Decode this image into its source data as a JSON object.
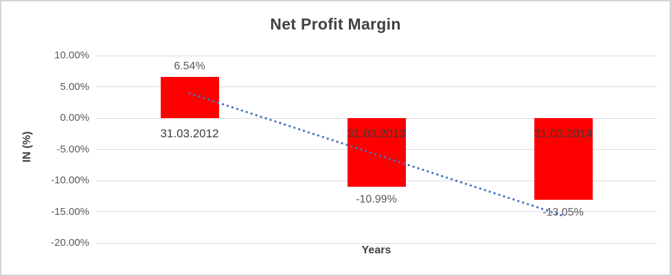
{
  "chart": {
    "title": "Net Profit Margin",
    "x_axis_title": "Years",
    "y_axis_title": "IN (%)"
  },
  "chart_data": {
    "type": "bar",
    "title": "Net Profit Margin",
    "xlabel": "Years",
    "ylabel": "IN (%)",
    "categories": [
      "31.03.2012",
      "31.03.2013",
      "31.03.2014"
    ],
    "values": [
      6.54,
      -10.99,
      -13.05
    ],
    "data_labels": [
      "6.54%",
      "-10.99%",
      "-13.05%"
    ],
    "ylim": [
      -20,
      10
    ],
    "ytick_step": 5,
    "yticks": [
      10,
      5,
      0,
      -5,
      -10,
      -15,
      -20
    ],
    "ytick_labels": [
      "10.00%",
      "5.00%",
      "0.00%",
      "-5.00%",
      "-10.00%",
      "-15.00%",
      "-20.00%"
    ],
    "grid": true,
    "legend": "none",
    "trendline": {
      "type": "linear",
      "style": "dotted",
      "start_value": 3.96,
      "end_value": -15.63
    },
    "colors": {
      "bar": "#ff0000",
      "trendline": "#4472c4",
      "gridline": "#d9d9d9",
      "title_text": "#404040",
      "axis_title_text": "#404040",
      "tick_text": "#595959",
      "category_label_text": "#3a3a3a",
      "data_label_text": "#595959",
      "chart_border": "#d3d3d3",
      "background": "#ffffff"
    }
  }
}
